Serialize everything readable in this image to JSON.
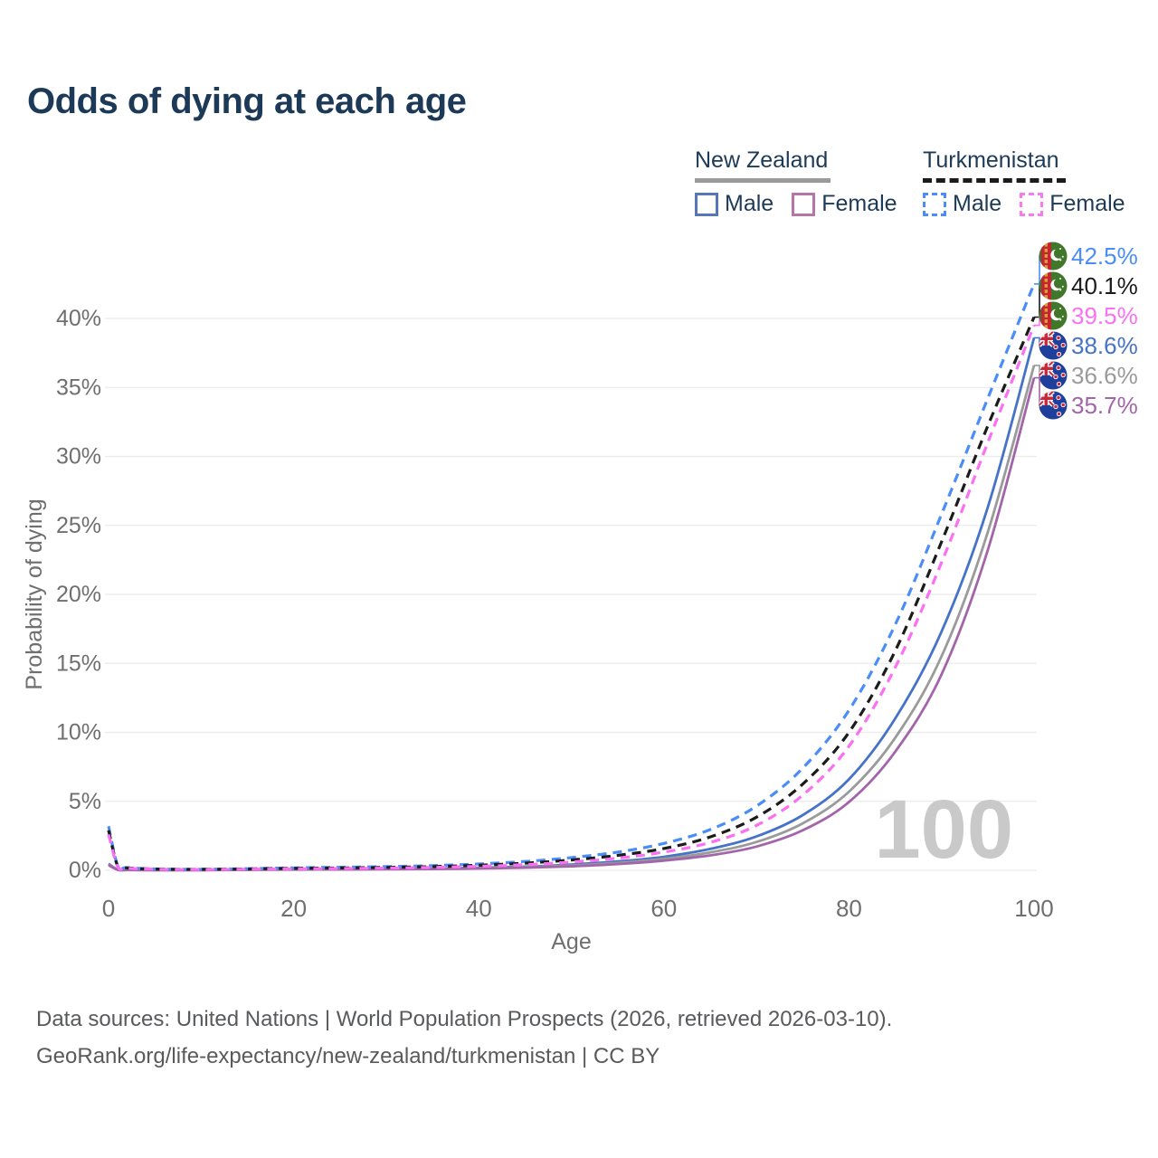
{
  "title": "Odds of dying at each age",
  "legend": {
    "groups": [
      {
        "country": "New Zealand",
        "line_style": "solid",
        "all_color": "#9a9a9a",
        "items": [
          {
            "label": "Male",
            "color": "#4673c8"
          },
          {
            "label": "Female",
            "color": "#a365aa"
          }
        ]
      },
      {
        "country": "Turkmenistan",
        "line_style": "dashed",
        "all_color": "#1b1b1b",
        "items": [
          {
            "label": "Male",
            "color": "#4b8df8"
          },
          {
            "label": "Female",
            "color": "#fb78f0"
          }
        ]
      }
    ]
  },
  "chart_data": {
    "type": "line",
    "title": "Odds of dying at each age",
    "xlabel": "Age",
    "ylabel": "Probability of dying",
    "xlim": [
      0,
      100
    ],
    "ylim": [
      0,
      44
    ],
    "xticks": [
      0,
      20,
      40,
      60,
      80,
      100
    ],
    "yticks": [
      0,
      5,
      10,
      15,
      20,
      25,
      30,
      35,
      40
    ],
    "ytick_suffix": "%",
    "grid": true,
    "legend_position": "top-right",
    "watermark": "100",
    "x_ages": [
      0,
      1,
      2,
      5,
      10,
      15,
      20,
      25,
      30,
      35,
      40,
      45,
      50,
      55,
      60,
      65,
      70,
      75,
      80,
      85,
      90,
      95,
      100
    ],
    "series": [
      {
        "name": "Turkmenistan male",
        "flag": "turkmenistan",
        "color": "#4b8df8",
        "dash": true,
        "end_label": "42.5%",
        "values": [
          3.2,
          0.32,
          0.2,
          0.1,
          0.08,
          0.12,
          0.18,
          0.22,
          0.27,
          0.34,
          0.46,
          0.64,
          0.92,
          1.32,
          1.95,
          2.95,
          4.65,
          7.4,
          11.6,
          17.8,
          25.8,
          34.2,
          42.5
        ]
      },
      {
        "name": "Turkmenistan all",
        "flag": "turkmenistan",
        "color": "#1b1b1b",
        "dash": true,
        "end_label": "40.1%",
        "values": [
          2.9,
          0.28,
          0.17,
          0.09,
          0.07,
          0.1,
          0.14,
          0.17,
          0.21,
          0.27,
          0.37,
          0.52,
          0.75,
          1.08,
          1.58,
          2.42,
          3.85,
          6.25,
          10.0,
          15.9,
          23.8,
          32.2,
          40.1
        ]
      },
      {
        "name": "Turkmenistan female",
        "flag": "turkmenistan",
        "color": "#fb70f3",
        "dash": true,
        "end_label": "39.5%",
        "values": [
          2.6,
          0.25,
          0.15,
          0.08,
          0.06,
          0.08,
          0.1,
          0.13,
          0.16,
          0.21,
          0.29,
          0.41,
          0.6,
          0.88,
          1.32,
          2.02,
          3.25,
          5.45,
          9.0,
          14.7,
          22.3,
          31.0,
          39.5
        ]
      },
      {
        "name": "New Zealand male",
        "flag": "new-zealand",
        "color": "#4673c8",
        "dash": false,
        "end_label": "38.6%",
        "values": [
          0.48,
          0.05,
          0.03,
          0.02,
          0.02,
          0.05,
          0.09,
          0.1,
          0.11,
          0.13,
          0.19,
          0.27,
          0.42,
          0.64,
          0.98,
          1.55,
          2.45,
          4.0,
          6.6,
          11.0,
          17.3,
          26.3,
          38.6
        ]
      },
      {
        "name": "New Zealand all",
        "flag": "new-zealand",
        "color": "#9a9a9a",
        "dash": false,
        "end_label": "36.6%",
        "values": [
          0.42,
          0.04,
          0.025,
          0.018,
          0.018,
          0.04,
          0.07,
          0.08,
          0.09,
          0.11,
          0.16,
          0.23,
          0.35,
          0.54,
          0.83,
          1.3,
          2.05,
          3.4,
          5.7,
          9.6,
          15.5,
          24.5,
          36.6
        ]
      },
      {
        "name": "New Zealand female",
        "flag": "new-zealand",
        "color": "#a365aa",
        "dash": false,
        "end_label": "35.7%",
        "values": [
          0.38,
          0.035,
          0.02,
          0.015,
          0.015,
          0.03,
          0.05,
          0.06,
          0.07,
          0.09,
          0.13,
          0.19,
          0.29,
          0.45,
          0.7,
          1.08,
          1.72,
          2.9,
          4.95,
          8.6,
          14.2,
          23.2,
          35.7
        ]
      }
    ],
    "flag_colors": {
      "turkmenistan_green": "#41772a",
      "turkmenistan_red": "#c4252f",
      "turkmenistan_gold": "#d9a03c",
      "new_zealand_blue": "#1e3f9c",
      "new_zealand_red": "#c8283c"
    }
  },
  "footer": {
    "line1": "Data sources: United Nations | World Population Prospects (2026, retrieved 2026-03-10).",
    "line2": "GeoRank.org/life-expectancy/new-zealand/turkmenistan | CC BY"
  }
}
